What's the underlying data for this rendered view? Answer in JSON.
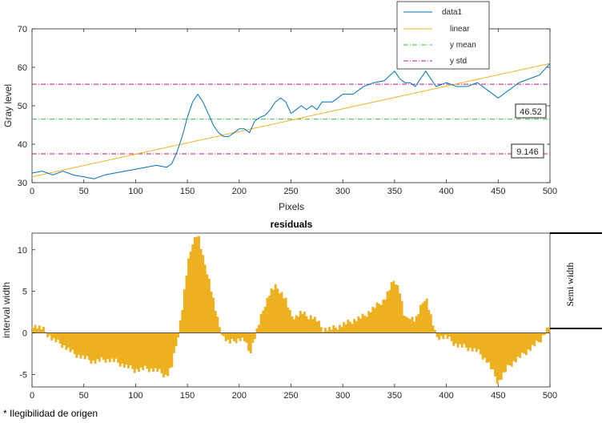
{
  "chart_data": [
    {
      "type": "line",
      "xlabel": "Pixels",
      "ylabel": "Gray level",
      "xlim": [
        0,
        500
      ],
      "ylim": [
        30,
        70
      ],
      "xticks": [
        "0",
        "50",
        "100",
        "150",
        "200",
        "250",
        "300",
        "350",
        "400",
        "450",
        "500"
      ],
      "yticks": [
        "30",
        "40",
        "50",
        "60",
        "70"
      ],
      "legend": [
        "data1",
        "linear",
        "y mean",
        "y std"
      ],
      "legend_location": "top-right",
      "colors": {
        "data": "#0072bd",
        "linear": "#edb120",
        "mean": "#3cb44b",
        "std": "#c71585"
      },
      "annotations": {
        "mean_box": "46.52",
        "std_box": "9.146"
      },
      "mean": 46.52,
      "std_line": 37.5,
      "std_line_upper": 55.6,
      "linear_fit": {
        "x": [
          0,
          500
        ],
        "y": [
          31.5,
          61.0
        ]
      },
      "series": {
        "name": "data1",
        "x": [
          0,
          10,
          20,
          30,
          40,
          50,
          60,
          70,
          80,
          90,
          100,
          110,
          120,
          130,
          135,
          140,
          145,
          150,
          155,
          160,
          165,
          170,
          175,
          180,
          185,
          190,
          195,
          200,
          205,
          210,
          215,
          220,
          225,
          230,
          235,
          240,
          245,
          250,
          255,
          260,
          265,
          270,
          275,
          280,
          290,
          300,
          310,
          320,
          330,
          340,
          350,
          355,
          360,
          365,
          370,
          380,
          385,
          390,
          400,
          410,
          420,
          430,
          440,
          450,
          460,
          470,
          480,
          490,
          500
        ],
        "y": [
          32.5,
          33,
          32,
          33,
          32,
          31.5,
          31,
          32,
          32.5,
          33,
          33.5,
          34,
          34.5,
          34,
          35,
          38,
          42,
          47,
          51,
          53,
          51,
          48,
          45,
          43,
          42,
          42,
          43,
          44,
          44,
          43,
          46,
          47,
          47.5,
          49,
          51,
          52,
          51,
          48,
          49,
          50,
          49,
          50,
          49,
          51,
          51,
          53,
          53,
          55,
          56,
          56.5,
          59,
          57,
          56,
          56,
          55,
          59,
          57,
          55,
          56,
          55,
          55,
          56,
          54,
          52,
          54,
          56,
          57,
          58,
          61
        ]
      }
    },
    {
      "type": "bar",
      "title": "residuals",
      "xlabel": "",
      "ylabel": "interval width",
      "xlim": [
        0,
        500
      ],
      "ylim": [
        -6.5,
        12
      ],
      "xticks": [
        "0",
        "50",
        "100",
        "150",
        "200",
        "250",
        "300",
        "350",
        "400",
        "450",
        "500"
      ],
      "yticks": [
        "-5",
        "0",
        "5",
        "10"
      ],
      "color": "#edb120",
      "side_label": "Semi width",
      "series": {
        "name": "residuals",
        "x": [
          0,
          10,
          20,
          30,
          40,
          50,
          60,
          70,
          80,
          90,
          100,
          110,
          120,
          130,
          135,
          140,
          145,
          150,
          155,
          160,
          165,
          170,
          175,
          180,
          185,
          190,
          195,
          200,
          205,
          210,
          215,
          220,
          225,
          230,
          235,
          240,
          245,
          250,
          255,
          260,
          265,
          270,
          275,
          280,
          290,
          300,
          310,
          320,
          330,
          340,
          350,
          355,
          360,
          365,
          370,
          380,
          385,
          390,
          400,
          410,
          420,
          430,
          440,
          450,
          460,
          470,
          480,
          490,
          500
        ],
        "y": [
          1,
          0.5,
          -0.8,
          -1.5,
          -2.5,
          -3,
          -3.5,
          -3.2,
          -3.4,
          -4,
          -4.5,
          -4.3,
          -4.5,
          -5.2,
          -4,
          -1,
          3,
          8,
          11,
          12,
          9,
          7,
          4,
          1,
          -0.5,
          -1.2,
          -1,
          -0.7,
          -0.9,
          -2.5,
          -0.5,
          1.5,
          3.5,
          5,
          5.5,
          5,
          4,
          2,
          2,
          2.5,
          2,
          2,
          1.5,
          0.5,
          0.5,
          1,
          1.5,
          2,
          3,
          4,
          6.5,
          5,
          1.5,
          2,
          1.5,
          4.5,
          2,
          -0.5,
          -0.5,
          -1.5,
          -1.8,
          -2.2,
          -3.5,
          -6,
          -4,
          -3,
          -2,
          -1,
          1
        ]
      }
    }
  ],
  "footnote": "* Ilegibilidad de origen"
}
